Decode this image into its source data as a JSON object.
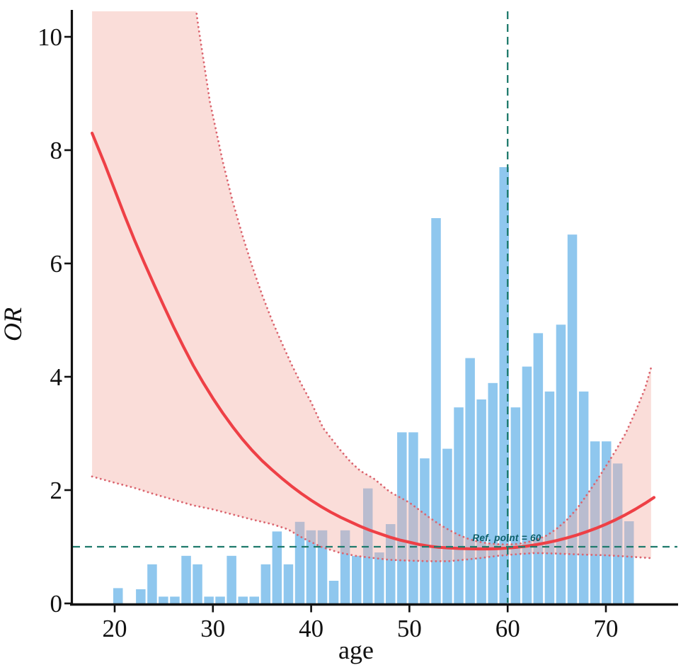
{
  "chart_data": {
    "type": "bar",
    "subtype": "histogram_with_spline_fit_and_confidence_band",
    "xlabel": "age",
    "ylabel": "OR",
    "x_ticks": [
      20,
      30,
      40,
      50,
      60,
      70
    ],
    "y_ticks": [
      0,
      2,
      4,
      6,
      8,
      10
    ],
    "xlim": [
      15.6,
      77.3
    ],
    "ylim": [
      0,
      10.46
    ],
    "grid": false,
    "legend": false,
    "ref_label": "Ref. point = 60",
    "ref_point_x": 60,
    "ref_line_y": 1,
    "bar_width": 0.97,
    "bars": [
      [
        20.34,
        0.27
      ],
      [
        22.65,
        0.25
      ],
      [
        23.81,
        0.69
      ],
      [
        24.96,
        0.12
      ],
      [
        26.12,
        0.12
      ],
      [
        27.28,
        0.84
      ],
      [
        28.43,
        0.69
      ],
      [
        29.59,
        0.12
      ],
      [
        30.74,
        0.12
      ],
      [
        31.9,
        0.84
      ],
      [
        33.06,
        0.12
      ],
      [
        34.21,
        0.12
      ],
      [
        35.37,
        0.69
      ],
      [
        36.52,
        1.27
      ],
      [
        37.68,
        0.69
      ],
      [
        38.84,
        1.44
      ],
      [
        39.99,
        1.29
      ],
      [
        41.15,
        1.29
      ],
      [
        42.3,
        0.4
      ],
      [
        43.46,
        1.29
      ],
      [
        44.62,
        0.84
      ],
      [
        45.77,
        2.03
      ],
      [
        46.93,
        0.9
      ],
      [
        48.08,
        1.4
      ],
      [
        49.24,
        3.02
      ],
      [
        50.4,
        3.02
      ],
      [
        51.55,
        2.56
      ],
      [
        52.71,
        6.8
      ],
      [
        53.86,
        2.73
      ],
      [
        55.02,
        3.46
      ],
      [
        56.18,
        4.33
      ],
      [
        57.33,
        3.6
      ],
      [
        58.49,
        3.89
      ],
      [
        59.64,
        7.7
      ],
      [
        60.8,
        3.46
      ],
      [
        61.96,
        4.18
      ],
      [
        63.11,
        4.77
      ],
      [
        64.27,
        3.74
      ],
      [
        65.42,
        4.92
      ],
      [
        66.58,
        6.51
      ],
      [
        67.74,
        3.74
      ],
      [
        68.89,
        2.86
      ],
      [
        70.05,
        2.86
      ],
      [
        71.2,
        2.47
      ],
      [
        72.36,
        1.45
      ]
    ],
    "curve": [
      [
        17.7,
        8.3
      ],
      [
        19,
        7.75
      ],
      [
        20,
        7.3
      ],
      [
        21,
        6.85
      ],
      [
        22,
        6.42
      ],
      [
        23,
        6.02
      ],
      [
        24,
        5.63
      ],
      [
        25,
        5.25
      ],
      [
        26,
        4.88
      ],
      [
        27,
        4.53
      ],
      [
        28,
        4.2
      ],
      [
        29,
        3.9
      ],
      [
        30,
        3.62
      ],
      [
        31,
        3.36
      ],
      [
        32,
        3.12
      ],
      [
        33,
        2.9
      ],
      [
        34,
        2.7
      ],
      [
        35,
        2.52
      ],
      [
        36,
        2.36
      ],
      [
        37,
        2.21
      ],
      [
        38,
        2.07
      ],
      [
        39,
        1.94
      ],
      [
        40,
        1.82
      ],
      [
        41,
        1.71
      ],
      [
        42,
        1.61
      ],
      [
        43,
        1.52
      ],
      [
        44,
        1.44
      ],
      [
        45,
        1.36
      ],
      [
        46,
        1.29
      ],
      [
        47,
        1.23
      ],
      [
        48,
        1.17
      ],
      [
        49,
        1.12
      ],
      [
        50,
        1.08
      ],
      [
        51,
        1.04
      ],
      [
        52,
        1.01
      ],
      [
        53,
        0.99
      ],
      [
        54,
        0.98
      ],
      [
        55,
        0.97
      ],
      [
        56,
        0.965
      ],
      [
        57,
        0.962
      ],
      [
        58,
        0.963
      ],
      [
        59,
        0.968
      ],
      [
        60,
        0.978
      ],
      [
        61,
        0.993
      ],
      [
        62,
        1.013
      ],
      [
        63,
        1.04
      ],
      [
        64,
        1.072
      ],
      [
        65,
        1.11
      ],
      [
        66,
        1.155
      ],
      [
        67,
        1.205
      ],
      [
        68,
        1.262
      ],
      [
        69,
        1.326
      ],
      [
        70,
        1.398
      ],
      [
        71,
        1.478
      ],
      [
        72,
        1.566
      ],
      [
        73,
        1.663
      ],
      [
        74,
        1.768
      ],
      [
        74.9,
        1.87
      ]
    ],
    "band_upper": [
      [
        17.7,
        30
      ],
      [
        20,
        24
      ],
      [
        22,
        19.5
      ],
      [
        24,
        16
      ],
      [
        26,
        13.2
      ],
      [
        27.5,
        11.5
      ],
      [
        28.5,
        10.2
      ],
      [
        29.7,
        8.85
      ],
      [
        31,
        7.8
      ],
      [
        32,
        7.1
      ],
      [
        33,
        6.5
      ],
      [
        34,
        5.95
      ],
      [
        35,
        5.45
      ],
      [
        36,
        5.0
      ],
      [
        37,
        4.6
      ],
      [
        38,
        4.22
      ],
      [
        39,
        3.87
      ],
      [
        40,
        3.55
      ],
      [
        41.2,
        3.1
      ],
      [
        42,
        2.92
      ],
      [
        43,
        2.7
      ],
      [
        44,
        2.5
      ],
      [
        45,
        2.34
      ],
      [
        46.4,
        2.2
      ],
      [
        48,
        1.97
      ],
      [
        50,
        1.78
      ],
      [
        51,
        1.65
      ],
      [
        52,
        1.52
      ],
      [
        53,
        1.4
      ],
      [
        54,
        1.3
      ],
      [
        55,
        1.21
      ],
      [
        56,
        1.14
      ],
      [
        57,
        1.09
      ],
      [
        58,
        1.06
      ],
      [
        59,
        1.045
      ],
      [
        60,
        1.04
      ],
      [
        61,
        1.05
      ],
      [
        62,
        1.08
      ],
      [
        63,
        1.13
      ],
      [
        64,
        1.2
      ],
      [
        65,
        1.32
      ],
      [
        66,
        1.47
      ],
      [
        67,
        1.66
      ],
      [
        68,
        1.9
      ],
      [
        69,
        2.15
      ],
      [
        70,
        2.42
      ],
      [
        71,
        2.7
      ],
      [
        72,
        3.0
      ],
      [
        73,
        3.38
      ],
      [
        74,
        3.8
      ],
      [
        74.6,
        4.16
      ]
    ],
    "band_lower": [
      [
        17.7,
        2.24
      ],
      [
        20,
        2.13
      ],
      [
        22,
        2.04
      ],
      [
        24,
        1.93
      ],
      [
        26,
        1.83
      ],
      [
        28,
        1.73
      ],
      [
        30,
        1.66
      ],
      [
        32,
        1.57
      ],
      [
        34,
        1.48
      ],
      [
        36,
        1.4
      ],
      [
        37.6,
        1.31
      ],
      [
        39.2,
        1.15
      ],
      [
        41,
        1.0
      ],
      [
        42.8,
        0.9
      ],
      [
        44.5,
        0.84
      ],
      [
        46.4,
        0.8
      ],
      [
        48,
        0.77
      ],
      [
        50,
        0.755
      ],
      [
        52,
        0.745
      ],
      [
        54,
        0.745
      ],
      [
        55.5,
        0.77
      ],
      [
        57.2,
        0.8
      ],
      [
        59,
        0.84
      ],
      [
        61,
        0.87
      ],
      [
        62.8,
        0.89
      ],
      [
        65,
        0.88
      ],
      [
        68,
        0.86
      ],
      [
        70,
        0.85
      ],
      [
        72,
        0.83
      ],
      [
        74.6,
        0.8
      ]
    ],
    "colors": {
      "bar": "#8FC7EE",
      "band_fill": "rgba(243,174,164,0.42)",
      "band_edge": "#DB6670",
      "curve": "#EE4046",
      "ref_line": "#1E7A6C",
      "ref_text": "#0C5F6A",
      "axis": "#111111"
    }
  }
}
